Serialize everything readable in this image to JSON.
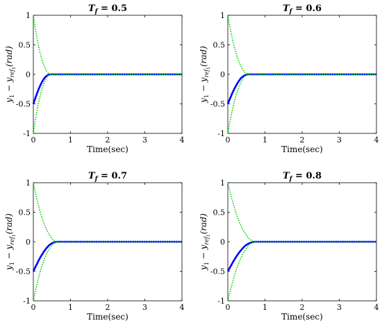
{
  "chart_data": [
    {
      "type": "line",
      "title": "T_f = 0.5",
      "title_parts": {
        "symbol": "T",
        "subscript": "f",
        "rest": " = 0.5"
      },
      "xlabel": "Time(sec)",
      "ylabel": "y₁ − y_ref₁(rad)",
      "ylabel_parts": {
        "a": "y",
        "a_sub": "1",
        "minus": " − y",
        "b_sub": "ref",
        "b_subsub": "1",
        "rest": "(rad)"
      },
      "xlim": [
        0,
        4
      ],
      "ylim": [
        -1,
        1
      ],
      "xticks": [
        0,
        1,
        2,
        3,
        4
      ],
      "yticks": [
        -1,
        -0.5,
        0,
        0.5,
        1
      ],
      "xtick_labels": [
        "0",
        "1",
        "2",
        "3",
        "4"
      ],
      "ytick_labels": [
        "-1",
        "-0.5",
        "0",
        "0.5",
        "1"
      ],
      "series": [
        {
          "style": "solid",
          "color": "#0000ff",
          "x": [
            0,
            0.05,
            0.1,
            0.15,
            0.2,
            0.25,
            0.3,
            0.35,
            0.4,
            0.45,
            0.5,
            4
          ],
          "y": [
            -0.5,
            -0.41,
            -0.32,
            -0.24,
            -0.17,
            -0.11,
            -0.06,
            -0.03,
            -0.01,
            0,
            0,
            0
          ]
        },
        {
          "style": "dotted",
          "color": "#00cc00",
          "x": [
            0,
            0.05,
            0.1,
            0.15,
            0.2,
            0.25,
            0.3,
            0.35,
            0.4,
            0.45,
            0.5,
            4
          ],
          "y": [
            1,
            0.79,
            0.61,
            0.45,
            0.32,
            0.21,
            0.13,
            0.06,
            0.02,
            0,
            0,
            0
          ]
        },
        {
          "style": "dotted",
          "color": "#00cc00",
          "x": [
            0,
            0.05,
            0.1,
            0.15,
            0.2,
            0.25,
            0.3,
            0.35,
            0.4,
            0.45,
            0.5,
            4
          ],
          "y": [
            -1,
            -0.79,
            -0.61,
            -0.45,
            -0.32,
            -0.21,
            -0.13,
            -0.06,
            -0.02,
            0,
            0,
            0
          ]
        }
      ]
    },
    {
      "type": "line",
      "title": "T_f = 0.6",
      "title_parts": {
        "symbol": "T",
        "subscript": "f",
        "rest": " = 0.6"
      },
      "xlabel": "Time(sec)",
      "ylabel": "y₁ − y_ref₁(rad)",
      "ylabel_parts": {
        "a": "y",
        "a_sub": "1",
        "minus": " − y",
        "b_sub": "ref",
        "b_subsub": "1",
        "rest": "(rad)"
      },
      "xlim": [
        0,
        4
      ],
      "ylim": [
        -1,
        1
      ],
      "xticks": [
        0,
        1,
        2,
        3,
        4
      ],
      "yticks": [
        -1,
        -0.5,
        0,
        0.5,
        1
      ],
      "xtick_labels": [
        "0",
        "1",
        "2",
        "3",
        "4"
      ],
      "ytick_labels": [
        "-1",
        "-0.5",
        "0",
        "0.5",
        "1"
      ],
      "series": [
        {
          "style": "solid",
          "color": "#0000ff",
          "x": [
            0,
            0.06,
            0.12,
            0.18,
            0.24,
            0.3,
            0.36,
            0.42,
            0.48,
            0.54,
            0.6,
            4
          ],
          "y": [
            -0.5,
            -0.41,
            -0.32,
            -0.24,
            -0.17,
            -0.11,
            -0.06,
            -0.03,
            -0.01,
            0,
            0,
            0
          ]
        },
        {
          "style": "dotted",
          "color": "#00cc00",
          "x": [
            0,
            0.06,
            0.12,
            0.18,
            0.24,
            0.3,
            0.36,
            0.42,
            0.48,
            0.54,
            0.6,
            4
          ],
          "y": [
            1,
            0.79,
            0.61,
            0.45,
            0.32,
            0.21,
            0.13,
            0.06,
            0.02,
            0,
            0,
            0
          ]
        },
        {
          "style": "dotted",
          "color": "#00cc00",
          "x": [
            0,
            0.06,
            0.12,
            0.18,
            0.24,
            0.3,
            0.36,
            0.42,
            0.48,
            0.54,
            0.6,
            4
          ],
          "y": [
            -1,
            -0.79,
            -0.61,
            -0.45,
            -0.32,
            -0.21,
            -0.13,
            -0.06,
            -0.02,
            0,
            0,
            0
          ]
        }
      ]
    },
    {
      "type": "line",
      "title": "T_f = 0.7",
      "title_parts": {
        "symbol": "T",
        "subscript": "f",
        "rest": " = 0.7"
      },
      "xlabel": "Time(sec)",
      "ylabel": "y₁ − y_ref₁(rad)",
      "ylabel_parts": {
        "a": "y",
        "a_sub": "1",
        "minus": " − y",
        "b_sub": "ref",
        "b_subsub": "1",
        "rest": "(rad)"
      },
      "xlim": [
        0,
        4
      ],
      "ylim": [
        -1,
        1
      ],
      "xticks": [
        0,
        1,
        2,
        3,
        4
      ],
      "yticks": [
        -1,
        -0.5,
        0,
        0.5,
        1
      ],
      "xtick_labels": [
        "0",
        "1",
        "2",
        "3",
        "4"
      ],
      "ytick_labels": [
        "-1",
        "-0.5",
        "0",
        "0.5",
        "1"
      ],
      "series": [
        {
          "style": "solid",
          "color": "#0000ff",
          "x": [
            0,
            0.07,
            0.14,
            0.21,
            0.28,
            0.35,
            0.42,
            0.49,
            0.56,
            0.63,
            0.7,
            4
          ],
          "y": [
            -0.5,
            -0.41,
            -0.32,
            -0.24,
            -0.17,
            -0.11,
            -0.06,
            -0.03,
            -0.01,
            0,
            0,
            0
          ]
        },
        {
          "style": "dotted",
          "color": "#00cc00",
          "x": [
            0,
            0.07,
            0.14,
            0.21,
            0.28,
            0.35,
            0.42,
            0.49,
            0.56,
            0.63,
            0.7,
            4
          ],
          "y": [
            1,
            0.79,
            0.61,
            0.45,
            0.32,
            0.21,
            0.13,
            0.06,
            0.02,
            0,
            0,
            0
          ]
        },
        {
          "style": "dotted",
          "color": "#00cc00",
          "x": [
            0,
            0.07,
            0.14,
            0.21,
            0.28,
            0.35,
            0.42,
            0.49,
            0.56,
            0.63,
            0.7,
            4
          ],
          "y": [
            -1,
            -0.79,
            -0.61,
            -0.45,
            -0.32,
            -0.21,
            -0.13,
            -0.06,
            -0.02,
            0,
            0,
            0
          ]
        }
      ]
    },
    {
      "type": "line",
      "title": "T_f = 0.8",
      "title_parts": {
        "symbol": "T",
        "subscript": "f",
        "rest": " = 0.8"
      },
      "xlabel": "Time(sec)",
      "ylabel": "y₁ − y_ref₁(rad)",
      "ylabel_parts": {
        "a": "y",
        "a_sub": "1",
        "minus": " − y",
        "b_sub": "ref",
        "b_subsub": "1",
        "rest": "(rad)"
      },
      "xlim": [
        0,
        4
      ],
      "ylim": [
        -1,
        1
      ],
      "xticks": [
        0,
        1,
        2,
        3,
        4
      ],
      "yticks": [
        -1,
        -0.5,
        0,
        0.5,
        1
      ],
      "xtick_labels": [
        "0",
        "1",
        "2",
        "3",
        "4"
      ],
      "ytick_labels": [
        "-1",
        "-0.5",
        "0",
        "0.5",
        "1"
      ],
      "series": [
        {
          "style": "solid",
          "color": "#0000ff",
          "x": [
            0,
            0.08,
            0.16,
            0.24,
            0.32,
            0.4,
            0.48,
            0.56,
            0.64,
            0.72,
            0.8,
            4
          ],
          "y": [
            -0.5,
            -0.41,
            -0.32,
            -0.24,
            -0.17,
            -0.11,
            -0.06,
            -0.03,
            -0.01,
            0,
            0,
            0
          ]
        },
        {
          "style": "dotted",
          "color": "#00cc00",
          "x": [
            0,
            0.08,
            0.16,
            0.24,
            0.32,
            0.4,
            0.48,
            0.56,
            0.64,
            0.72,
            0.8,
            4
          ],
          "y": [
            1,
            0.79,
            0.61,
            0.45,
            0.32,
            0.21,
            0.13,
            0.06,
            0.02,
            0,
            0,
            0
          ]
        },
        {
          "style": "dotted",
          "color": "#00cc00",
          "x": [
            0,
            0.08,
            0.16,
            0.24,
            0.32,
            0.4,
            0.48,
            0.56,
            0.64,
            0.72,
            0.8,
            4
          ],
          "y": [
            -1,
            -0.79,
            -0.61,
            -0.45,
            -0.32,
            -0.21,
            -0.13,
            -0.06,
            -0.02,
            0,
            0,
            0
          ]
        }
      ]
    }
  ]
}
